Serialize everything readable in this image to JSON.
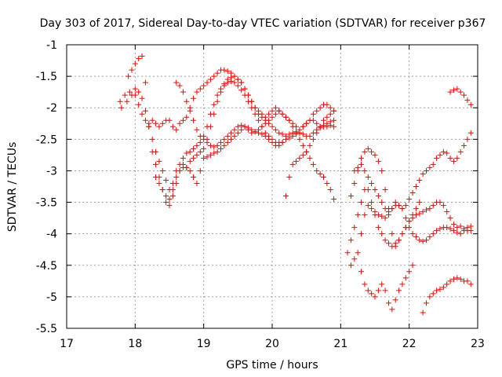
{
  "chart_data": {
    "type": "scatter",
    "title": "Day 303 of 2017, Sidereal Day-to-day VTEC variation (SDTVAR) for receiver p367",
    "xlabel": "GPS time / hours",
    "ylabel": "SDTVAR / TECUs",
    "xlim": [
      17,
      23
    ],
    "ylim": [
      -5.5,
      -1
    ],
    "xticks": [
      17,
      18,
      19,
      20,
      21,
      22,
      23
    ],
    "yticks": [
      -1,
      -1.5,
      -2,
      -2.5,
      -3,
      -3.5,
      -4,
      -4.5,
      -5,
      -5.5
    ],
    "xtick_labels": [
      "17",
      "18",
      "19",
      "20",
      "21",
      "22",
      "23"
    ],
    "ytick_labels": [
      "-1",
      "-1.5",
      "-2",
      "-2.5",
      "-3",
      "-3.5",
      "-4",
      "-4.5",
      "-5",
      "-5.5"
    ],
    "grid": true,
    "marker": "+",
    "color": "#ff0000",
    "series": [
      {
        "name": "track-1",
        "x": [
          17.78,
          17.85,
          17.92,
          18.0,
          18.05,
          18.1,
          18.15,
          18.2,
          18.25,
          18.3,
          18.35,
          18.4,
          18.45,
          18.5,
          18.55,
          18.6,
          18.65,
          18.7,
          18.75,
          18.8,
          18.85,
          18.9,
          18.95,
          19.0,
          19.05,
          19.1,
          19.15,
          19.2,
          19.25,
          19.3,
          19.35,
          19.4,
          19.45,
          19.5,
          19.55,
          19.6,
          19.65,
          19.7,
          19.75,
          19.8,
          19.85,
          19.9,
          19.95,
          20.0,
          20.05,
          20.1,
          20.15,
          20.2,
          20.25,
          20.3,
          20.35,
          20.4,
          20.45,
          20.5,
          20.55,
          20.6,
          20.65,
          20.7,
          20.75,
          20.8,
          20.85,
          20.9
        ],
        "y": [
          -1.9,
          -1.8,
          -1.75,
          -1.8,
          -1.95,
          -2.1,
          -2.2,
          -2.25,
          -2.2,
          -2.25,
          -2.3,
          -2.25,
          -2.2,
          -2.2,
          -2.3,
          -2.35,
          -2.25,
          -2.2,
          -2.15,
          -2.0,
          -1.85,
          -1.75,
          -1.7,
          -1.65,
          -1.6,
          -1.55,
          -1.5,
          -1.45,
          -1.4,
          -1.4,
          -1.42,
          -1.45,
          -1.5,
          -1.55,
          -1.6,
          -1.7,
          -1.8,
          -1.9,
          -2.0,
          -2.05,
          -2.1,
          -2.15,
          -2.1,
          -2.05,
          -2.0,
          -2.05,
          -2.1,
          -2.15,
          -2.2,
          -2.25,
          -2.3,
          -2.35,
          -2.3,
          -2.25,
          -2.2,
          -2.1,
          -2.05,
          -2.0,
          -1.95,
          -1.95,
          -2.0,
          -2.05
        ]
      },
      {
        "name": "track-2",
        "x": [
          17.8,
          17.88,
          17.95,
          18.0,
          18.05,
          18.1,
          18.15,
          18.2,
          18.25,
          18.3,
          18.35,
          18.4,
          18.45,
          18.5,
          18.55,
          18.6,
          18.65,
          18.7,
          18.75,
          18.8,
          18.85,
          18.9,
          18.95,
          19.0,
          19.05,
          19.1,
          19.15,
          19.2,
          19.25,
          19.3,
          19.35,
          19.4,
          19.45,
          19.5,
          19.55,
          19.6,
          19.65,
          19.7,
          19.75,
          19.8,
          19.85,
          19.9,
          19.95,
          20.0,
          20.05,
          20.1,
          20.15,
          20.2,
          20.25,
          20.3,
          20.35,
          20.4,
          20.45,
          20.5,
          20.55,
          20.6,
          20.65,
          20.7,
          20.75,
          20.8,
          20.85,
          20.9
        ],
        "y": [
          -2.0,
          -1.9,
          -1.8,
          -1.7,
          -1.75,
          -1.85,
          -2.05,
          -2.3,
          -2.5,
          -2.7,
          -2.85,
          -3.0,
          -3.15,
          -3.3,
          -3.2,
          -3.0,
          -2.9,
          -2.8,
          -2.72,
          -2.7,
          -2.65,
          -2.6,
          -2.55,
          -2.45,
          -2.3,
          -2.1,
          -1.95,
          -1.8,
          -1.7,
          -1.62,
          -1.55,
          -1.52,
          -1.5,
          -1.55,
          -1.6,
          -1.7,
          -1.8,
          -1.9,
          -2.0,
          -2.1,
          -2.15,
          -2.2,
          -2.25,
          -2.3,
          -2.35,
          -2.4,
          -2.42,
          -2.45,
          -2.42,
          -2.4,
          -2.38,
          -2.4,
          -2.42,
          -2.45,
          -2.45,
          -2.4,
          -2.35,
          -2.32,
          -2.3,
          -2.3,
          -2.28,
          -2.3
        ]
      },
      {
        "name": "track-3",
        "x": [
          17.9,
          17.95,
          18.0,
          18.05,
          18.1,
          18.15,
          18.2,
          18.25,
          18.3,
          18.35,
          18.4,
          18.45,
          18.5,
          18.55,
          18.6,
          18.65,
          18.7,
          18.75,
          18.8,
          18.85,
          18.9,
          18.95,
          19.0,
          19.05,
          19.1,
          19.15,
          19.2,
          19.25,
          19.3,
          19.35,
          19.4,
          19.45,
          19.5,
          19.55,
          19.6,
          19.65,
          19.7,
          19.75,
          19.8,
          19.85,
          19.9,
          19.95,
          20.0,
          20.05,
          20.1,
          20.15,
          20.2,
          20.25,
          20.3,
          20.35,
          20.4,
          20.45,
          20.5,
          20.55,
          20.6,
          20.65,
          20.7,
          20.75,
          20.8,
          20.85,
          20.9
        ],
        "y": [
          -1.5,
          -1.4,
          -1.3,
          -1.22,
          -1.18,
          -1.6,
          -2.3,
          -2.7,
          -2.9,
          -3.1,
          -3.3,
          -3.5,
          -3.55,
          -3.4,
          -3.2,
          -3.0,
          -2.9,
          -2.95,
          -2.85,
          -2.8,
          -2.75,
          -2.7,
          -2.65,
          -2.5,
          -2.3,
          -2.1,
          -1.9,
          -1.75,
          -1.65,
          -1.6,
          -1.58,
          -1.6,
          -1.65,
          -1.72,
          -1.8,
          -1.9,
          -2.0,
          -2.1,
          -2.2,
          -2.3,
          -2.4,
          -2.45,
          -2.5,
          -2.55,
          -2.55,
          -2.55,
          -2.5,
          -2.48,
          -2.45,
          -2.42,
          -2.4,
          -2.3,
          -2.25,
          -2.2,
          -2.2,
          -2.25,
          -2.3,
          -2.28,
          -2.25,
          -2.22,
          -2.2
        ]
      },
      {
        "name": "track-4",
        "x": [
          18.6,
          18.65,
          18.7,
          18.75,
          18.8,
          18.85,
          18.9,
          18.95,
          19.0,
          19.05,
          19.1,
          19.15,
          19.2,
          19.25,
          19.3,
          19.35,
          19.4,
          19.45,
          19.5,
          19.55,
          19.6,
          19.65,
          19.7,
          19.75,
          19.8,
          19.85,
          19.9,
          19.95,
          20.0,
          20.05,
          20.1,
          20.15,
          20.2,
          20.25,
          20.3,
          20.35,
          20.4,
          20.45,
          20.5,
          20.55,
          20.6,
          20.65,
          20.7,
          20.75,
          20.8,
          20.85,
          20.9
        ],
        "y": [
          -1.6,
          -1.65,
          -1.75,
          -1.9,
          -2.05,
          -2.2,
          -2.35,
          -2.45,
          -2.5,
          -2.55,
          -2.6,
          -2.62,
          -2.6,
          -2.55,
          -2.5,
          -2.45,
          -2.4,
          -2.35,
          -2.3,
          -2.28,
          -2.3,
          -2.35,
          -2.4,
          -2.38,
          -2.35,
          -2.3,
          -2.25,
          -2.2,
          -2.15,
          -2.1,
          -2.05,
          -2.1,
          -2.15,
          -2.2,
          -2.3,
          -2.4,
          -2.5,
          -2.6,
          -2.7,
          -2.8,
          -2.9,
          -3.0,
          -3.05,
          -3.1,
          -3.2,
          -3.3,
          -3.45
        ]
      },
      {
        "name": "track-5",
        "x": [
          18.3,
          18.35,
          18.4,
          18.45,
          18.5,
          18.55,
          18.6,
          18.65,
          18.7,
          18.75,
          18.8,
          18.85,
          18.9,
          18.95,
          19.0,
          19.05,
          19.1,
          19.15,
          19.2,
          19.25,
          19.3,
          19.35,
          19.4,
          19.45,
          19.5,
          19.55,
          19.6,
          19.65,
          19.7,
          19.75,
          19.8,
          19.85,
          19.9,
          19.95,
          20.0,
          20.05,
          20.1,
          20.15,
          20.2,
          20.25,
          20.3,
          20.35,
          20.4,
          20.45,
          20.5,
          20.55,
          20.6,
          20.65,
          20.7,
          20.75,
          20.8,
          20.85,
          20.9
        ],
        "y": [
          -3.1,
          -3.2,
          -3.3,
          -3.4,
          -3.45,
          -3.3,
          -3.1,
          -3.0,
          -2.95,
          -2.95,
          -3.0,
          -3.1,
          -3.2,
          -3.0,
          -2.8,
          -2.78,
          -2.75,
          -2.72,
          -2.7,
          -2.65,
          -2.6,
          -2.55,
          -2.5,
          -2.45,
          -2.4,
          -2.35,
          -2.3,
          -2.32,
          -2.35,
          -2.38,
          -2.4,
          -2.42,
          -2.45,
          -2.5,
          -2.55,
          -2.6,
          -2.6,
          -2.55,
          -3.4,
          -3.1,
          -2.9,
          -2.85,
          -2.8,
          -2.75,
          -2.7,
          -2.6,
          -2.5,
          -2.4,
          -2.3,
          -2.2,
          -2.15,
          -2.1,
          -2.05
        ]
      },
      {
        "name": "track-6",
        "x": [
          21.1,
          21.15,
          21.2,
          21.25,
          21.3,
          21.35,
          21.4,
          21.45,
          21.5,
          21.55,
          21.6,
          21.65,
          21.7,
          21.75,
          21.8,
          21.85,
          21.9,
          21.95,
          22.0,
          22.05,
          22.1,
          22.15,
          22.2,
          22.25,
          22.3,
          22.35,
          22.4,
          22.45,
          22.5,
          22.55,
          22.6,
          22.65,
          22.7,
          22.75,
          22.8,
          22.85,
          22.9
        ],
        "y": [
          -4.3,
          -4.1,
          -3.9,
          -3.7,
          -3.5,
          -3.3,
          -3.3,
          -3.5,
          -3.7,
          -3.9,
          -4.0,
          -4.1,
          -4.15,
          -4.2,
          -4.15,
          -4.1,
          -4.0,
          -3.9,
          -3.8,
          -3.75,
          -3.7,
          -3.68,
          -3.65,
          -3.62,
          -3.6,
          -3.55,
          -3.5,
          -3.5,
          -3.55,
          -3.65,
          -3.75,
          -3.85,
          -3.9,
          -3.88,
          -3.92,
          -3.95,
          -3.95
        ]
      },
      {
        "name": "track-7",
        "x": [
          21.15,
          21.2,
          21.25,
          21.3,
          21.35,
          21.4,
          21.45,
          21.5,
          21.55,
          21.6,
          21.65,
          21.7,
          21.75,
          21.8,
          21.85,
          21.9,
          21.95,
          22.0,
          22.05,
          22.1,
          22.15,
          22.2,
          22.25,
          22.3,
          22.35,
          22.4,
          22.45,
          22.5,
          22.55,
          22.6,
          22.65,
          22.7,
          22.75,
          22.8,
          22.85,
          22.9
        ],
        "y": [
          -4.5,
          -4.4,
          -4.3,
          -4.0,
          -3.7,
          -3.55,
          -3.6,
          -3.65,
          -3.7,
          -3.72,
          -3.75,
          -3.7,
          -3.6,
          -3.5,
          -3.55,
          -3.6,
          -3.75,
          -3.9,
          -4.0,
          -4.05,
          -4.1,
          -4.12,
          -4.1,
          -4.05,
          -4.0,
          -3.95,
          -3.92,
          -3.9,
          -3.9,
          -3.92,
          -3.95,
          -3.98,
          -4.0,
          -3.95,
          -3.9,
          -3.88
        ]
      },
      {
        "name": "track-8",
        "x": [
          21.2,
          21.25,
          21.3,
          21.35,
          21.4,
          21.45,
          21.5,
          21.55,
          21.6,
          21.65,
          21.7,
          21.75,
          21.8,
          21.85,
          21.9,
          21.95,
          22.0,
          22.05,
          22.1,
          22.15,
          22.2,
          22.25,
          22.3,
          22.35,
          22.4,
          22.45,
          22.5,
          22.55,
          22.6,
          22.65,
          22.7,
          22.75,
          22.8,
          22.85,
          22.9
        ],
        "y": [
          -3.0,
          -2.95,
          -2.9,
          -3.0,
          -3.1,
          -3.2,
          -3.3,
          -3.4,
          -3.5,
          -3.6,
          -3.65,
          -3.6,
          -3.55,
          -3.55,
          -3.6,
          -3.55,
          -3.45,
          -3.35,
          -3.25,
          -3.15,
          -3.05,
          -3.0,
          -2.95,
          -2.9,
          -2.8,
          -2.75,
          -2.7,
          -2.72,
          -2.8,
          -2.85,
          -2.8,
          -2.7,
          -2.6,
          -2.5,
          -2.4
        ]
      },
      {
        "name": "track-9",
        "x": [
          21.15,
          21.2,
          21.25,
          21.3,
          21.35,
          21.4,
          21.45,
          21.5,
          21.55,
          21.6,
          21.65,
          21.7,
          21.75,
          21.8,
          21.85,
          21.9,
          21.95,
          22.0,
          22.05,
          22.1,
          22.15
        ],
        "y": [
          -3.4,
          -3.2,
          -3.0,
          -2.8,
          -2.7,
          -2.65,
          -2.7,
          -2.75,
          -2.85,
          -3.0,
          -3.3,
          -3.6,
          -4.0,
          -4.2,
          -4.1,
          -4.0,
          -3.9,
          -3.8,
          -3.7,
          -3.6,
          -3.5
        ]
      },
      {
        "name": "track-10",
        "x": [
          21.3,
          21.35,
          21.4,
          21.45,
          21.5,
          21.55,
          21.6,
          21.65,
          21.7,
          21.75,
          21.8,
          21.85,
          21.9,
          21.95,
          22.0,
          22.05
        ],
        "y": [
          -4.6,
          -4.8,
          -4.9,
          -4.95,
          -5.0,
          -4.9,
          -4.8,
          -4.9,
          -5.1,
          -5.2,
          -5.05,
          -4.9,
          -4.8,
          -4.7,
          -4.6,
          -4.5
        ]
      },
      {
        "name": "track-11",
        "x": [
          22.2,
          22.25,
          22.3,
          22.35,
          22.4,
          22.45,
          22.5,
          22.55,
          22.6,
          22.65,
          22.7,
          22.75,
          22.8,
          22.85,
          22.9
        ],
        "y": [
          -5.25,
          -5.1,
          -5.0,
          -4.95,
          -4.9,
          -4.88,
          -4.85,
          -4.8,
          -4.75,
          -4.72,
          -4.7,
          -4.72,
          -4.75,
          -4.75,
          -4.8
        ]
      },
      {
        "name": "track-12",
        "x": [
          22.6,
          22.65,
          22.7,
          22.75,
          22.8,
          22.85,
          22.9
        ],
        "y": [
          -1.75,
          -1.72,
          -1.7,
          -1.75,
          -1.8,
          -1.88,
          -1.95
        ]
      }
    ]
  }
}
